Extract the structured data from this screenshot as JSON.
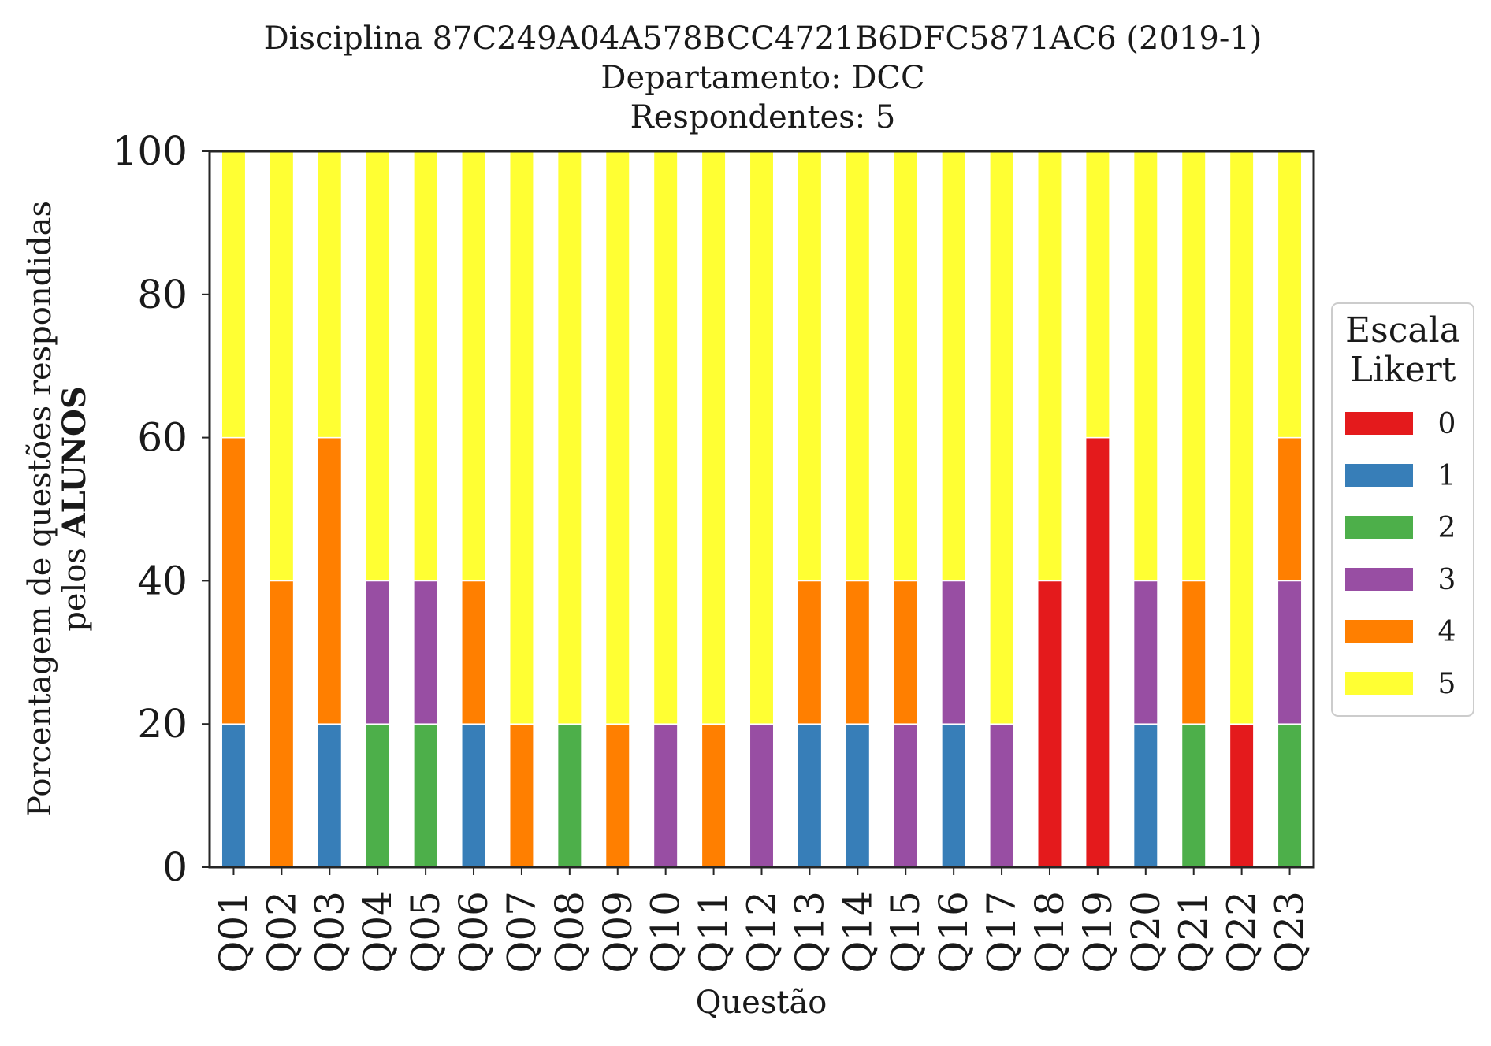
{
  "chart_data": {
    "type": "bar",
    "stacked": true,
    "title": [
      "Disciplina 87C249A04A578BCC4721B6DFC5871AC6 (2019-1)",
      "Departamento: DCC",
      "Respondentes: 5"
    ],
    "xlabel": "Questão",
    "ylabel": [
      "Porcentagem de questões respondidas",
      "pelos",
      "ALUNOS"
    ],
    "ylim": [
      0,
      100
    ],
    "yticks": [
      0,
      20,
      40,
      60,
      80,
      100
    ],
    "grid": false,
    "categories": [
      "Q01",
      "Q02",
      "Q03",
      "Q04",
      "Q05",
      "Q06",
      "Q07",
      "Q08",
      "Q09",
      "Q10",
      "Q11",
      "Q12",
      "Q13",
      "Q14",
      "Q15",
      "Q16",
      "Q17",
      "Q18",
      "Q19",
      "Q20",
      "Q21",
      "Q22",
      "Q23"
    ],
    "legend": {
      "title": [
        "Escala",
        "Likert"
      ],
      "placement": "right"
    },
    "series": [
      {
        "name": "0",
        "color": "#e41a1c",
        "values": [
          0,
          0,
          0,
          0,
          0,
          0,
          0,
          0,
          0,
          0,
          0,
          0,
          0,
          0,
          0,
          0,
          0,
          40,
          60,
          0,
          0,
          20,
          0
        ]
      },
      {
        "name": "1",
        "color": "#377eb8",
        "values": [
          20,
          0,
          20,
          0,
          0,
          20,
          0,
          0,
          0,
          0,
          0,
          0,
          20,
          20,
          0,
          20,
          0,
          0,
          0,
          20,
          0,
          0,
          0
        ]
      },
      {
        "name": "2",
        "color": "#4daf4a",
        "values": [
          0,
          0,
          0,
          20,
          20,
          0,
          0,
          20,
          0,
          0,
          0,
          0,
          0,
          0,
          0,
          0,
          0,
          0,
          0,
          0,
          20,
          0,
          20
        ]
      },
      {
        "name": "3",
        "color": "#984ea3",
        "values": [
          0,
          0,
          0,
          20,
          20,
          0,
          0,
          0,
          0,
          20,
          0,
          20,
          0,
          0,
          20,
          20,
          20,
          0,
          0,
          20,
          0,
          0,
          20
        ]
      },
      {
        "name": "4",
        "color": "#ff7f00",
        "values": [
          40,
          40,
          40,
          0,
          0,
          20,
          20,
          0,
          20,
          0,
          20,
          0,
          20,
          20,
          20,
          0,
          0,
          0,
          0,
          0,
          20,
          0,
          20
        ]
      },
      {
        "name": "5",
        "color": "#ffff33",
        "values": [
          40,
          60,
          40,
          60,
          60,
          60,
          80,
          80,
          80,
          80,
          80,
          80,
          60,
          60,
          60,
          60,
          80,
          60,
          40,
          60,
          60,
          80,
          40
        ]
      }
    ]
  }
}
